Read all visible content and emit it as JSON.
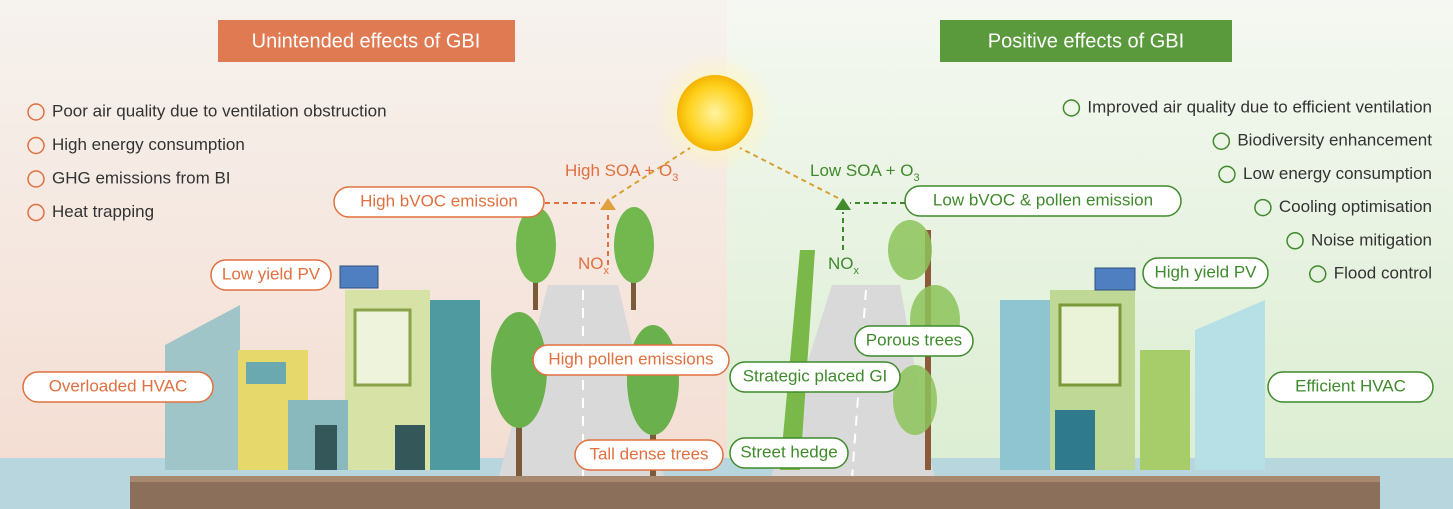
{
  "headers": {
    "left": "Unintended effects of GBI",
    "right": "Positive effects of GBI"
  },
  "left_effects": [
    "Poor air quality due to ventilation obstruction",
    "High energy consumption",
    "GHG emissions from BI",
    "Heat trapping"
  ],
  "right_effects": [
    "Improved air quality due to efficient ventilation",
    "Biodiversity enhancement",
    "Low energy consumption",
    "Cooling optimisation",
    "Noise mitigation",
    "Flood control"
  ],
  "center": {
    "left_reaction": {
      "text": "High SOA + O",
      "subscript": "3"
    },
    "right_reaction": {
      "text": "Low SOA + O",
      "subscript": "3"
    },
    "left_nox": {
      "text": "NO",
      "subscript": "x"
    },
    "right_nox": {
      "text": "NO",
      "subscript": "x"
    }
  },
  "left_callouts": [
    "High bVOC emission",
    "Low yield PV",
    "Overloaded HVAC",
    "High pollen emissions",
    "Tall dense trees"
  ],
  "right_callouts": [
    "Low bVOC & pollen emission",
    "High yield PV",
    "Porous trees",
    "Strategic placed GI",
    "Efficient HVAC",
    "Street hedge"
  ]
}
